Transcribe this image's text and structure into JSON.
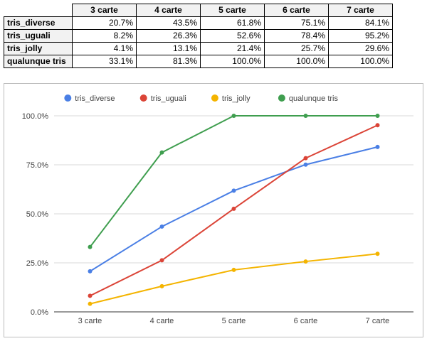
{
  "table": {
    "columns": [
      "3 carte",
      "4 carte",
      "5 carte",
      "6 carte",
      "7 carte"
    ],
    "rows": [
      {
        "label": "tris_diverse",
        "values": [
          "20.7%",
          "43.5%",
          "61.8%",
          "75.1%",
          "84.1%"
        ]
      },
      {
        "label": "tris_uguali",
        "values": [
          "8.2%",
          "26.3%",
          "52.6%",
          "78.4%",
          "95.2%"
        ]
      },
      {
        "label": "tris_jolly",
        "values": [
          "4.1%",
          "13.1%",
          "21.4%",
          "25.7%",
          "29.6%"
        ]
      },
      {
        "label": "qualunque tris",
        "values": [
          "33.1%",
          "81.3%",
          "100.0%",
          "100.0%",
          "100.0%"
        ]
      }
    ]
  },
  "chart_data": {
    "type": "line",
    "title": "",
    "xlabel": "",
    "ylabel": "",
    "categories": [
      "3 carte",
      "4 carte",
      "5 carte",
      "6 carte",
      "7 carte"
    ],
    "ylim": [
      0,
      100
    ],
    "yticks": [
      {
        "value": 0,
        "label": "0.0%"
      },
      {
        "value": 25,
        "label": "25.0%"
      },
      {
        "value": 50,
        "label": "50.0%"
      },
      {
        "value": 75,
        "label": "75.0%"
      },
      {
        "value": 100,
        "label": "100.0%"
      }
    ],
    "grid": true,
    "legend": "top",
    "series": [
      {
        "name": "tris_diverse",
        "color": "#4a7fe5",
        "values": [
          20.7,
          43.5,
          61.8,
          75.1,
          84.1
        ]
      },
      {
        "name": "tris_uguali",
        "color": "#db4437",
        "values": [
          8.2,
          26.3,
          52.6,
          78.4,
          95.2
        ]
      },
      {
        "name": "tris_jolly",
        "color": "#f4b400",
        "values": [
          4.1,
          13.1,
          21.4,
          25.7,
          29.6
        ]
      },
      {
        "name": "qualunque tris",
        "color": "#3f9e4f",
        "values": [
          33.1,
          81.3,
          100.0,
          100.0,
          100.0
        ]
      }
    ]
  }
}
